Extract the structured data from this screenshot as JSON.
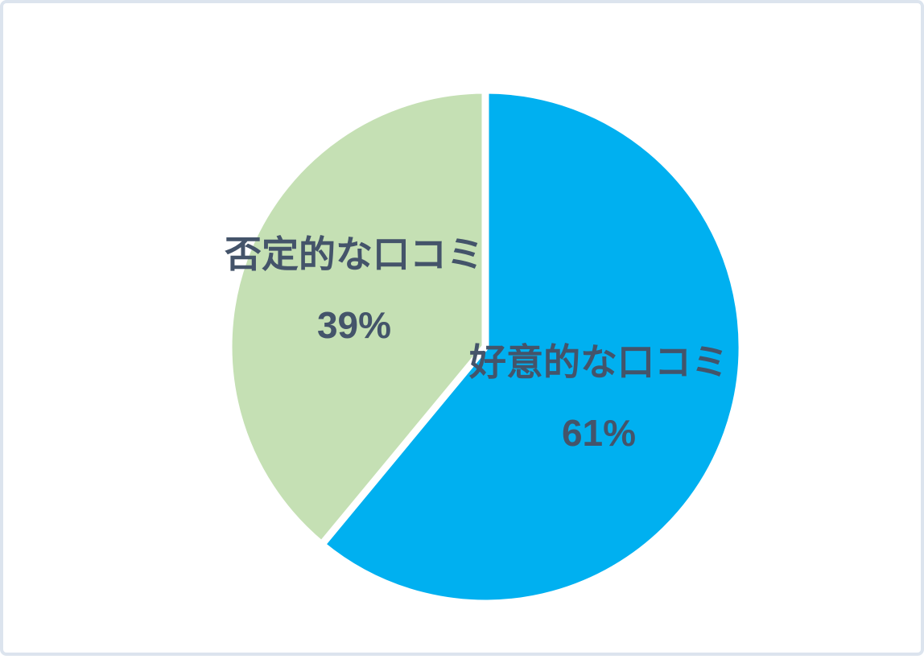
{
  "chart_data": {
    "type": "pie",
    "title": "",
    "legend": "none",
    "start_angle_deg": -90,
    "direction": "clockwise",
    "separator_color": "#FFFFFF",
    "label_color": "#44546A",
    "slices": [
      {
        "id": "favorable",
        "label": "好意的な口コミ",
        "value": 61,
        "value_label": "61%",
        "color": "#00B0F0"
      },
      {
        "id": "negative",
        "label": "否定的な口コミ",
        "value": 39,
        "value_label": "39%",
        "color": "#C5E0B4"
      }
    ]
  },
  "canvas": {
    "background": "#FFFFFF",
    "border_color": "#DCE4EE"
  }
}
